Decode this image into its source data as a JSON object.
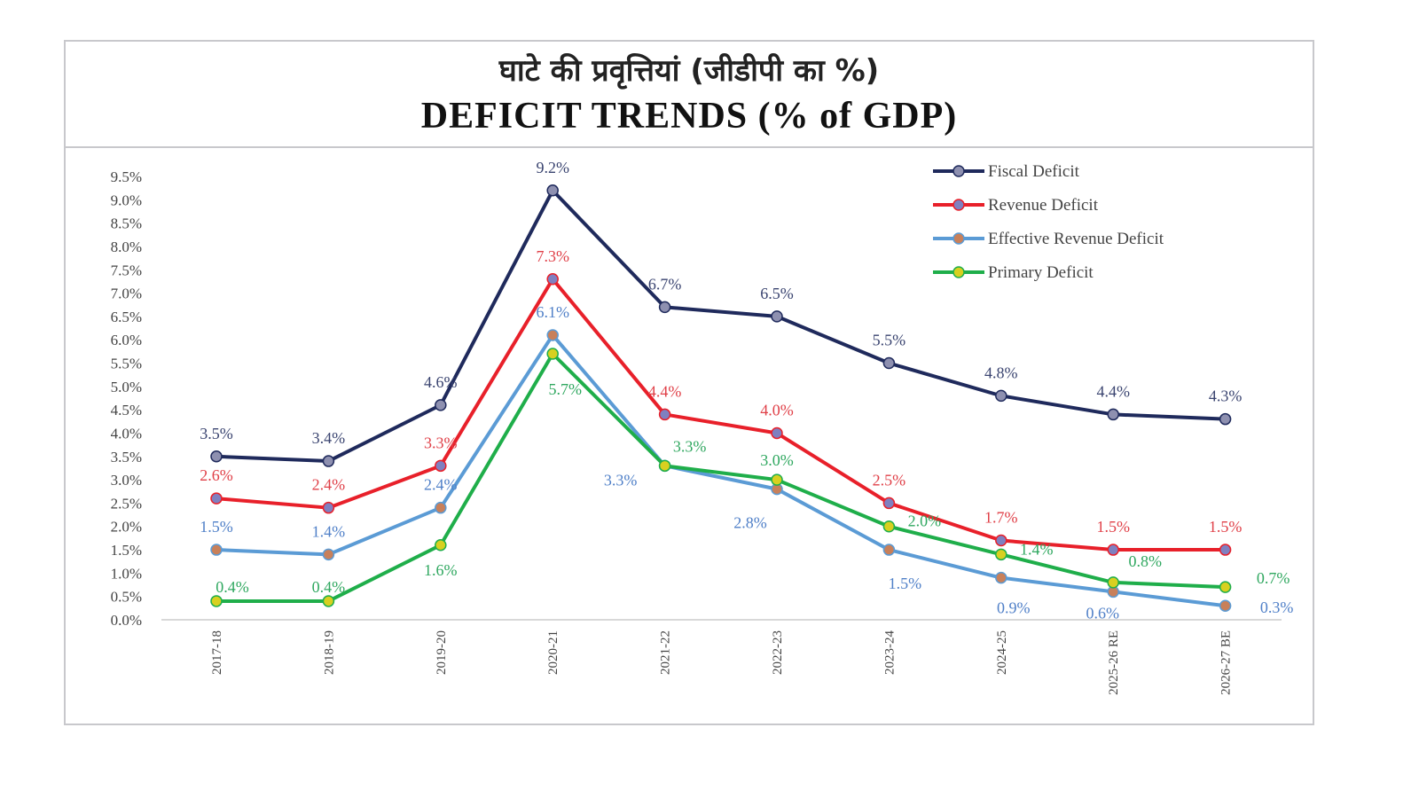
{
  "title_hindi": "घाटे की प्रवृत्तियां (जीडीपी का %)",
  "title_english": "DEFICIT TRENDS (% of GDP)",
  "chart_data": {
    "type": "line",
    "title": "DEFICIT TRENDS (% of GDP)",
    "categories": [
      "2017-18",
      "2018-19",
      "2019-20",
      "2020-21",
      "2021-22",
      "2022-23",
      "2023-24",
      "2024-25",
      "2025-26 RE",
      "2026-27 BE"
    ],
    "ylim": [
      0,
      9.5
    ],
    "yticks": [
      "0.0%",
      "0.5%",
      "1.0%",
      "1.5%",
      "2.0%",
      "2.5%",
      "3.0%",
      "3.5%",
      "4.0%",
      "4.5%",
      "5.0%",
      "5.5%",
      "6.0%",
      "6.5%",
      "7.0%",
      "7.5%",
      "8.0%",
      "8.5%",
      "9.0%",
      "9.5%"
    ],
    "grid": false,
    "legend": "top-right",
    "series": [
      {
        "name": "Fiscal Deficit",
        "color": "#1f2a5c",
        "marker": "#8e90b0",
        "label_color": "#3a4470",
        "values": [
          3.5,
          3.4,
          4.6,
          9.2,
          6.7,
          6.5,
          5.5,
          4.8,
          4.4,
          4.3
        ]
      },
      {
        "name": "Revenue Deficit",
        "color": "#e8202a",
        "marker": "#7f80c0",
        "label_color": "#e04048",
        "values": [
          2.6,
          2.4,
          3.3,
          7.3,
          4.4,
          4.0,
          2.5,
          1.7,
          1.5,
          1.5
        ]
      },
      {
        "name": "Effective Revenue Deficit",
        "color": "#5b9bd5",
        "marker": "#c8805a",
        "label_color": "#5080c8",
        "values": [
          1.5,
          1.4,
          2.4,
          6.1,
          3.3,
          2.8,
          1.5,
          0.9,
          0.6,
          0.3
        ]
      },
      {
        "name": "Primary Deficit",
        "color": "#1fae4a",
        "marker": "#d8d020",
        "label_color": "#30a860",
        "values": [
          0.4,
          0.4,
          1.6,
          5.7,
          3.3,
          3.0,
          2.0,
          1.4,
          0.8,
          0.7
        ]
      }
    ]
  }
}
